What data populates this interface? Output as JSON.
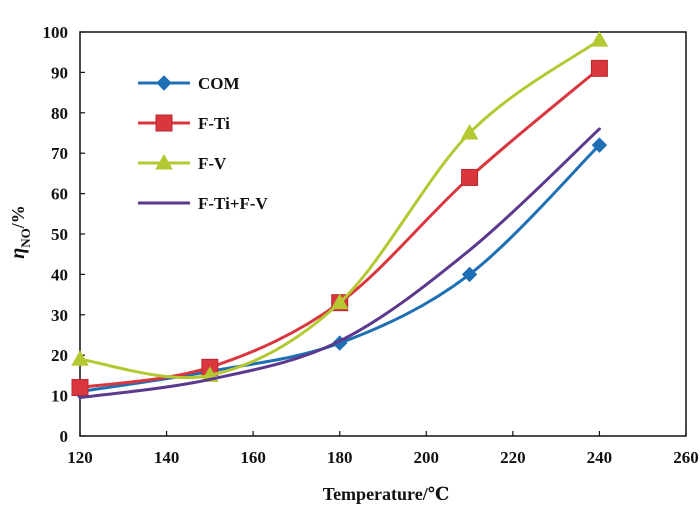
{
  "chart_data": {
    "type": "line",
    "xlabel": "Temperature/℃",
    "ylabel_main": "η",
    "ylabel_sub": "NO",
    "ylabel_unit": "/%",
    "xlim": [
      120,
      260
    ],
    "ylim": [
      0,
      100
    ],
    "x_ticks": [
      120,
      140,
      160,
      180,
      200,
      220,
      240,
      260
    ],
    "y_ticks": [
      0,
      10,
      20,
      30,
      40,
      50,
      60,
      70,
      80,
      90,
      100
    ],
    "grid": false,
    "legend_position": "top-left",
    "x": [
      120,
      150,
      180,
      210,
      240
    ],
    "series": [
      {
        "name": "COM",
        "color": "#1f6fb4",
        "marker": "diamond",
        "values": [
          11,
          16,
          23,
          40,
          72
        ]
      },
      {
        "name": "F-Ti",
        "color": "#d9363e",
        "marker": "square",
        "values": [
          12,
          17,
          33,
          64,
          91
        ]
      },
      {
        "name": "F-V",
        "color": "#b5c832",
        "marker": "triangle",
        "values": [
          19,
          15,
          33,
          75,
          98
        ]
      },
      {
        "name": "F-Ti+F-V",
        "color": "#5b3a8e",
        "marker": "none",
        "values": [
          9.5,
          14,
          23.5,
          46,
          76
        ]
      }
    ]
  }
}
